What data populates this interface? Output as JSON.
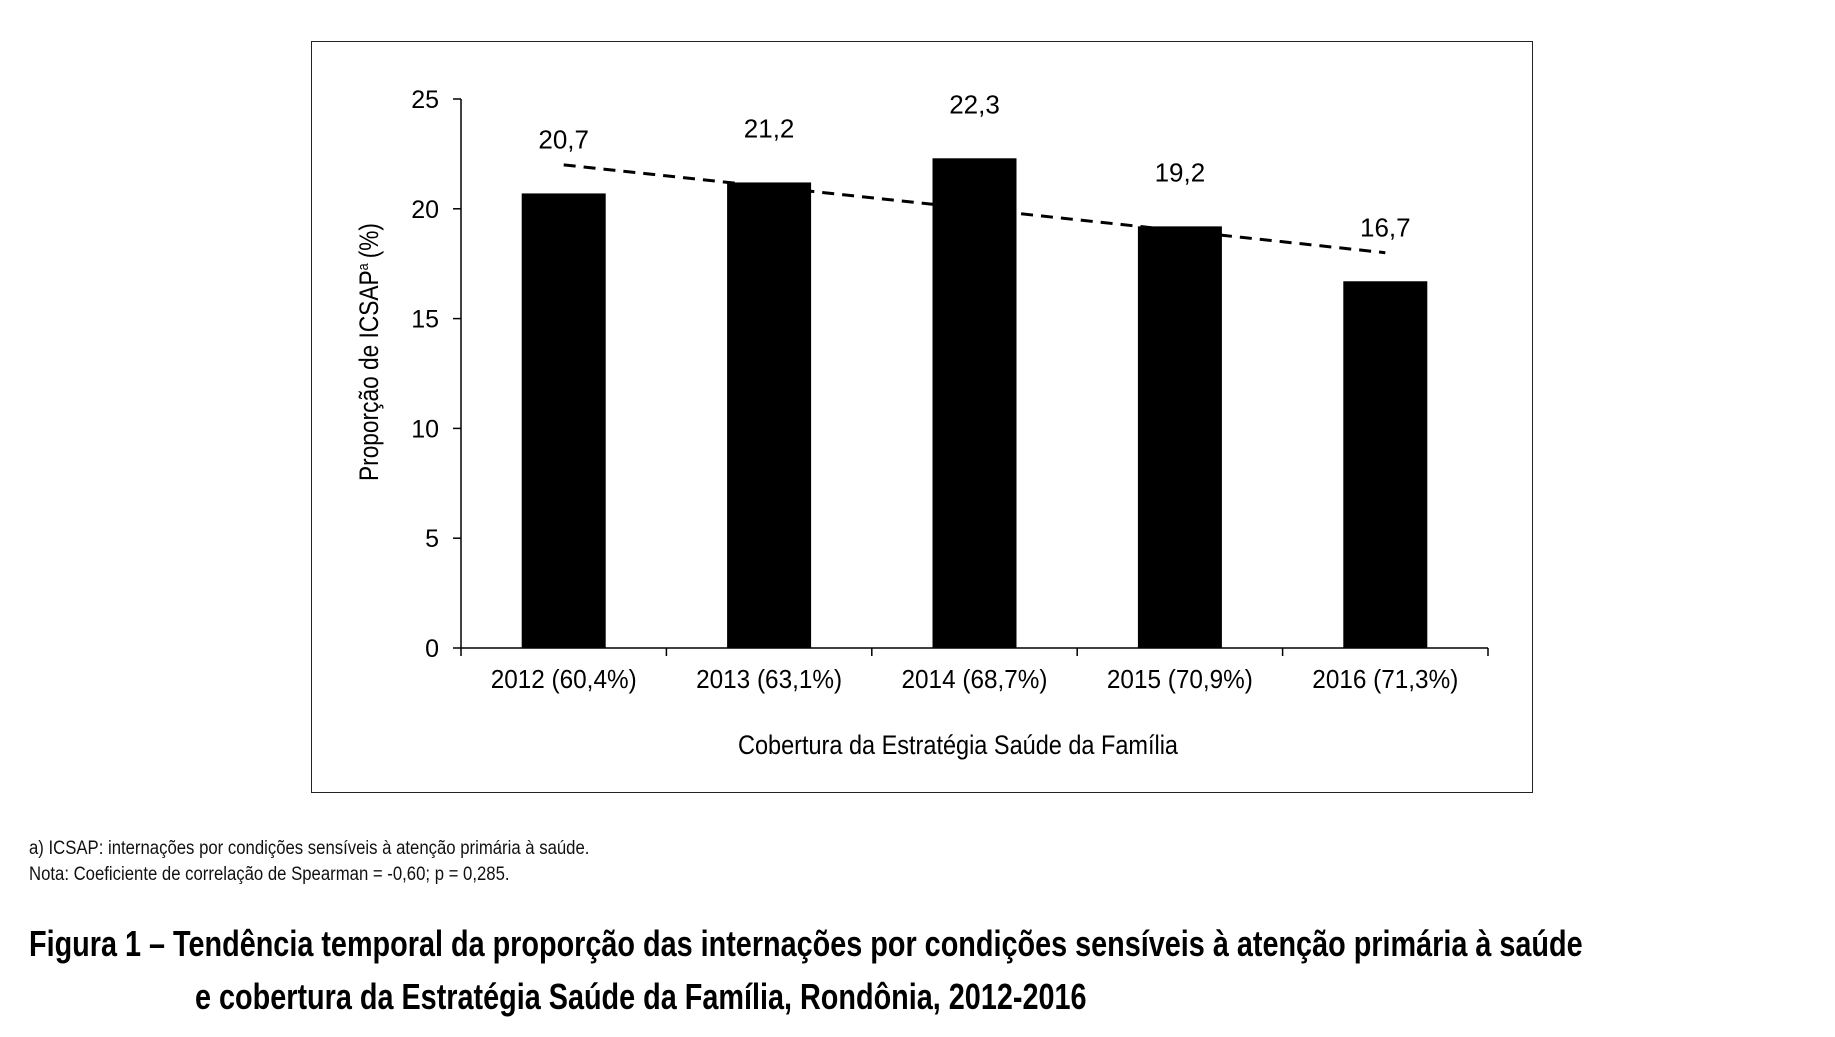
{
  "chart_data": {
    "type": "bar",
    "categories": [
      "2012 (60,4%)",
      "2013 (63,1%)",
      "2014 (68,7%)",
      "2015 (70,9%)",
      "2016 (71,3%)"
    ],
    "values": [
      20.7,
      21.2,
      22.3,
      19.2,
      16.7
    ],
    "data_labels": [
      "20,7",
      "21,2",
      "22,3",
      "19,2",
      "16,7"
    ],
    "bar_color": "#000000",
    "trendline": {
      "style": "dashed",
      "start": 22.0,
      "end": 18.0
    },
    "title": "",
    "xlabel": "Cobertura da Estratégia Saúde da Família",
    "ylabel": "Proporção de ICSAP",
    "ylabel_superscript": "a",
    "ylabel_unit": "(%)",
    "ylim": [
      0,
      25
    ],
    "yticks": [
      0,
      5,
      10,
      15,
      20,
      25
    ],
    "grid": false,
    "legend": "none"
  },
  "footnotes": {
    "a": "a) ICSAP: internações por condições sensíveis à atenção primária à saúde.",
    "nota": "Nota: Coeficiente de correlação de Spearman = -0,60; p = 0,285."
  },
  "caption": {
    "line1": "Figura 1 – Tendência temporal da proporção das internações por condições sensíveis à atenção primária à saúde",
    "line2": "e cobertura da Estratégia Saúde da Família, Rondônia, 2012-2016"
  }
}
